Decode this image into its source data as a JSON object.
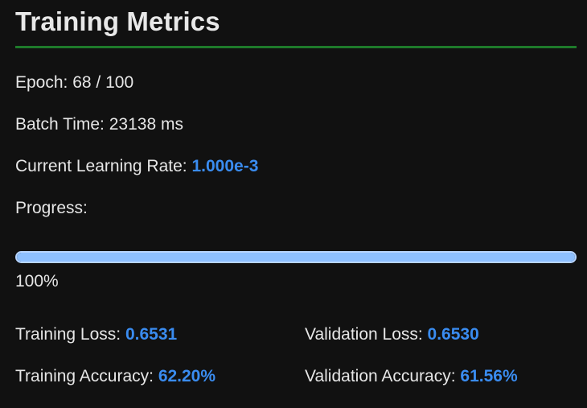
{
  "title": "Training Metrics",
  "colors": {
    "accent": "#3a8cf0",
    "rule": "#1e7a2a",
    "progress_fill": "#8ec0ff",
    "background": "#111111"
  },
  "epoch": {
    "label": "Epoch:",
    "value": "68 / 100"
  },
  "batch_time": {
    "label": "Batch Time:",
    "value": "23138 ms"
  },
  "learning_rate": {
    "label": "Current Learning Rate:",
    "value": "1.000e-3"
  },
  "progress": {
    "label": "Progress:",
    "fraction": 1.0,
    "text": "100%"
  },
  "metrics": {
    "training_loss": {
      "label": "Training Loss:",
      "value": "0.6531"
    },
    "validation_loss": {
      "label": "Validation Loss:",
      "value": "0.6530"
    },
    "training_accuracy": {
      "label": "Training Accuracy:",
      "value": "62.20%"
    },
    "validation_accuracy": {
      "label": "Validation Accuracy:",
      "value": "61.56%"
    }
  }
}
